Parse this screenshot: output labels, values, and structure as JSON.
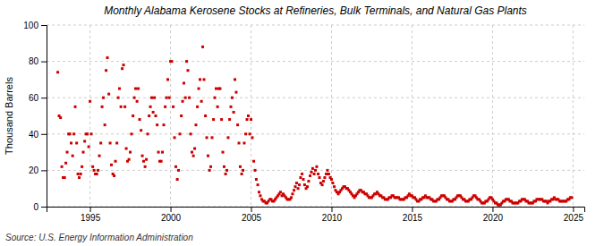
{
  "chart_data": {
    "type": "scatter",
    "title": "Monthly Alabama Kerosene Stocks at Refineries, Bulk Terminals, and Natural Gas Plants",
    "y_label": "Thousand Barrels",
    "annotations": [
      "Source: U.S. Energy Information Administration"
    ],
    "color": "#cc0000",
    "marker": "square",
    "grid": true,
    "xlim": [
      1992.3,
      2025.7
    ],
    "xticks": [
      1995,
      2000,
      2005,
      2010,
      2015,
      2020,
      2025
    ],
    "ylim": [
      0,
      100
    ],
    "yticks": [
      0,
      20,
      40,
      60,
      80,
      100
    ],
    "x": [
      1993.0,
      1993.08,
      1993.17,
      1993.25,
      1993.33,
      1993.42,
      1993.5,
      1993.58,
      1993.67,
      1993.75,
      1993.83,
      1993.92,
      1994.0,
      1994.08,
      1994.17,
      1994.25,
      1994.33,
      1994.42,
      1994.5,
      1994.58,
      1994.67,
      1994.75,
      1994.83,
      1994.92,
      1995.0,
      1995.08,
      1995.17,
      1995.25,
      1995.33,
      1995.42,
      1995.5,
      1995.58,
      1995.67,
      1995.75,
      1995.83,
      1995.92,
      1996.0,
      1996.08,
      1996.17,
      1996.25,
      1996.33,
      1996.42,
      1996.5,
      1996.58,
      1996.67,
      1996.75,
      1996.83,
      1996.92,
      1997.0,
      1997.08,
      1997.17,
      1997.25,
      1997.33,
      1997.42,
      1997.5,
      1997.58,
      1997.67,
      1997.75,
      1997.83,
      1997.92,
      1998.0,
      1998.08,
      1998.17,
      1998.25,
      1998.33,
      1998.42,
      1998.5,
      1998.58,
      1998.67,
      1998.75,
      1998.83,
      1998.92,
      1999.0,
      1999.08,
      1999.17,
      1999.25,
      1999.33,
      1999.42,
      1999.5,
      1999.58,
      1999.67,
      1999.75,
      1999.83,
      1999.92,
      2000.0,
      2000.08,
      2000.17,
      2000.25,
      2000.33,
      2000.42,
      2000.5,
      2000.58,
      2000.67,
      2000.75,
      2000.83,
      2000.92,
      2001.0,
      2001.08,
      2001.17,
      2001.25,
      2001.33,
      2001.42,
      2001.5,
      2001.58,
      2001.67,
      2001.75,
      2001.83,
      2001.92,
      2002.0,
      2002.08,
      2002.17,
      2002.25,
      2002.33,
      2002.42,
      2002.5,
      2002.58,
      2002.67,
      2002.75,
      2002.83,
      2002.92,
      2003.0,
      2003.08,
      2003.17,
      2003.25,
      2003.33,
      2003.42,
      2003.5,
      2003.58,
      2003.67,
      2003.75,
      2003.83,
      2003.92,
      2004.0,
      2004.08,
      2004.17,
      2004.25,
      2004.33,
      2004.42,
      2004.5,
      2004.58,
      2004.67,
      2004.75,
      2004.83,
      2004.92,
      2005.0,
      2005.08,
      2005.17,
      2005.25,
      2005.33,
      2005.42,
      2005.5,
      2005.58,
      2005.67,
      2005.75,
      2005.83,
      2005.92,
      2006.0,
      2006.08,
      2006.17,
      2006.25,
      2006.33,
      2006.42,
      2006.5,
      2006.58,
      2006.67,
      2006.75,
      2006.83,
      2006.92,
      2007.0,
      2007.08,
      2007.17,
      2007.25,
      2007.33,
      2007.42,
      2007.5,
      2007.58,
      2007.67,
      2007.75,
      2007.83,
      2007.92,
      2008.0,
      2008.08,
      2008.17,
      2008.25,
      2008.33,
      2008.42,
      2008.5,
      2008.58,
      2008.67,
      2008.75,
      2008.83,
      2008.92,
      2009.0,
      2009.08,
      2009.17,
      2009.25,
      2009.33,
      2009.42,
      2009.5,
      2009.58,
      2009.67,
      2009.75,
      2009.83,
      2009.92,
      2010.0,
      2010.08,
      2010.17,
      2010.25,
      2010.33,
      2010.42,
      2010.5,
      2010.58,
      2010.67,
      2010.75,
      2010.83,
      2010.92,
      2011.0,
      2011.08,
      2011.17,
      2011.25,
      2011.33,
      2011.42,
      2011.5,
      2011.58,
      2011.67,
      2011.75,
      2011.83,
      2011.92,
      2012.0,
      2012.08,
      2012.17,
      2012.25,
      2012.33,
      2012.42,
      2012.5,
      2012.58,
      2012.67,
      2012.75,
      2012.83,
      2012.92,
      2013.0,
      2013.08,
      2013.17,
      2013.25,
      2013.33,
      2013.42,
      2013.5,
      2013.58,
      2013.67,
      2013.75,
      2013.83,
      2013.92,
      2014.0,
      2014.08,
      2014.17,
      2014.25,
      2014.33,
      2014.42,
      2014.5,
      2014.58,
      2014.67,
      2014.75,
      2014.83,
      2014.92,
      2015.0,
      2015.08,
      2015.17,
      2015.25,
      2015.33,
      2015.42,
      2015.5,
      2015.58,
      2015.67,
      2015.75,
      2015.83,
      2015.92,
      2016.0,
      2016.08,
      2016.17,
      2016.25,
      2016.33,
      2016.42,
      2016.5,
      2016.58,
      2016.67,
      2016.75,
      2016.83,
      2016.92,
      2017.0,
      2017.08,
      2017.17,
      2017.25,
      2017.33,
      2017.42,
      2017.5,
      2017.58,
      2017.67,
      2017.75,
      2017.83,
      2017.92,
      2018.0,
      2018.08,
      2018.17,
      2018.25,
      2018.33,
      2018.42,
      2018.5,
      2018.58,
      2018.67,
      2018.75,
      2018.83,
      2018.92,
      2019.0,
      2019.08,
      2019.17,
      2019.25,
      2019.33,
      2019.42,
      2019.5,
      2019.58,
      2019.67,
      2019.75,
      2019.83,
      2019.92,
      2020.0,
      2020.08,
      2020.17,
      2020.25,
      2020.33,
      2020.42,
      2020.5,
      2020.58,
      2020.67,
      2020.75,
      2020.83,
      2020.92,
      2021.0,
      2021.08,
      2021.17,
      2021.25,
      2021.33,
      2021.42,
      2021.5,
      2021.58,
      2021.67,
      2021.75,
      2021.83,
      2021.92,
      2022.0,
      2022.08,
      2022.17,
      2022.25,
      2022.33,
      2022.42,
      2022.5,
      2022.58,
      2022.67,
      2022.75,
      2022.83,
      2022.92,
      2023.0,
      2023.08,
      2023.17,
      2023.25,
      2023.33,
      2023.42,
      2023.5,
      2023.58,
      2023.67,
      2023.75,
      2023.83,
      2023.92,
      2024.0,
      2024.08,
      2024.17,
      2024.25,
      2024.33,
      2024.42,
      2024.5,
      2024.58,
      2024.67,
      2024.75,
      2024.83,
      2024.92
    ],
    "values": [
      74,
      50,
      49,
      22,
      16,
      16,
      24,
      30,
      40,
      40,
      35,
      28,
      40,
      55,
      35,
      18,
      16,
      18,
      22,
      30,
      36,
      40,
      40,
      33,
      58,
      40,
      22,
      20,
      18,
      18,
      20,
      28,
      35,
      55,
      60,
      45,
      75,
      82,
      62,
      35,
      23,
      18,
      17,
      25,
      35,
      60,
      65,
      55,
      76,
      78,
      55,
      32,
      25,
      26,
      30,
      40,
      50,
      60,
      65,
      58,
      65,
      48,
      42,
      28,
      25,
      22,
      26,
      40,
      50,
      55,
      60,
      52,
      60,
      50,
      45,
      30,
      25,
      25,
      30,
      45,
      55,
      60,
      70,
      60,
      80,
      80,
      55,
      38,
      22,
      15,
      20,
      40,
      50,
      58,
      68,
      60,
      80,
      75,
      60,
      40,
      30,
      28,
      32,
      45,
      55,
      65,
      70,
      58,
      88,
      70,
      50,
      38,
      28,
      20,
      22,
      38,
      48,
      60,
      65,
      55,
      65,
      65,
      48,
      30,
      22,
      18,
      20,
      38,
      48,
      55,
      60,
      52,
      70,
      63,
      45,
      35,
      22,
      18,
      20,
      35,
      40,
      48,
      50,
      40,
      48,
      38,
      25,
      20,
      15,
      12,
      8,
      6,
      4,
      3,
      3,
      2,
      2,
      3,
      4,
      4,
      3,
      3,
      4,
      5,
      6,
      7,
      8,
      6,
      7,
      6,
      5,
      4,
      4,
      4,
      5,
      7,
      9,
      11,
      13,
      10,
      12,
      16,
      18,
      15,
      12,
      10,
      11,
      14,
      17,
      19,
      21,
      18,
      20,
      22,
      18,
      16,
      13,
      12,
      14,
      16,
      18,
      20,
      18,
      16,
      15,
      13,
      11,
      9,
      8,
      7,
      8,
      9,
      10,
      11,
      11,
      10,
      10,
      9,
      8,
      7,
      6,
      5,
      6,
      7,
      8,
      9,
      9,
      8,
      8,
      7,
      7,
      6,
      5,
      5,
      5,
      6,
      7,
      7,
      8,
      7,
      6,
      6,
      5,
      5,
      4,
      4,
      4,
      5,
      5,
      6,
      6,
      5,
      5,
      5,
      5,
      4,
      4,
      4,
      4,
      5,
      5,
      6,
      7,
      6,
      6,
      5,
      5,
      4,
      3,
      3,
      4,
      4,
      5,
      5,
      6,
      5,
      5,
      5,
      4,
      4,
      3,
      3,
      3,
      4,
      4,
      5,
      6,
      6,
      6,
      5,
      4,
      4,
      3,
      3,
      3,
      4,
      4,
      5,
      6,
      6,
      6,
      5,
      4,
      4,
      3,
      3,
      3,
      4,
      4,
      5,
      6,
      6,
      5,
      4,
      4,
      3,
      2,
      2,
      2,
      3,
      3,
      4,
      5,
      5,
      4,
      3,
      2,
      2,
      1,
      1,
      1,
      2,
      3,
      3,
      4,
      4,
      4,
      3,
      3,
      2,
      2,
      2,
      2,
      2,
      3,
      3,
      4,
      4,
      4,
      3,
      3,
      2,
      2,
      2,
      2,
      3,
      3,
      4,
      4,
      4,
      4,
      4,
      3,
      3,
      3,
      2,
      3,
      3,
      4,
      4,
      5,
      4,
      4,
      4,
      3,
      3,
      3,
      3,
      3,
      3,
      4,
      4,
      5,
      5
    ]
  }
}
